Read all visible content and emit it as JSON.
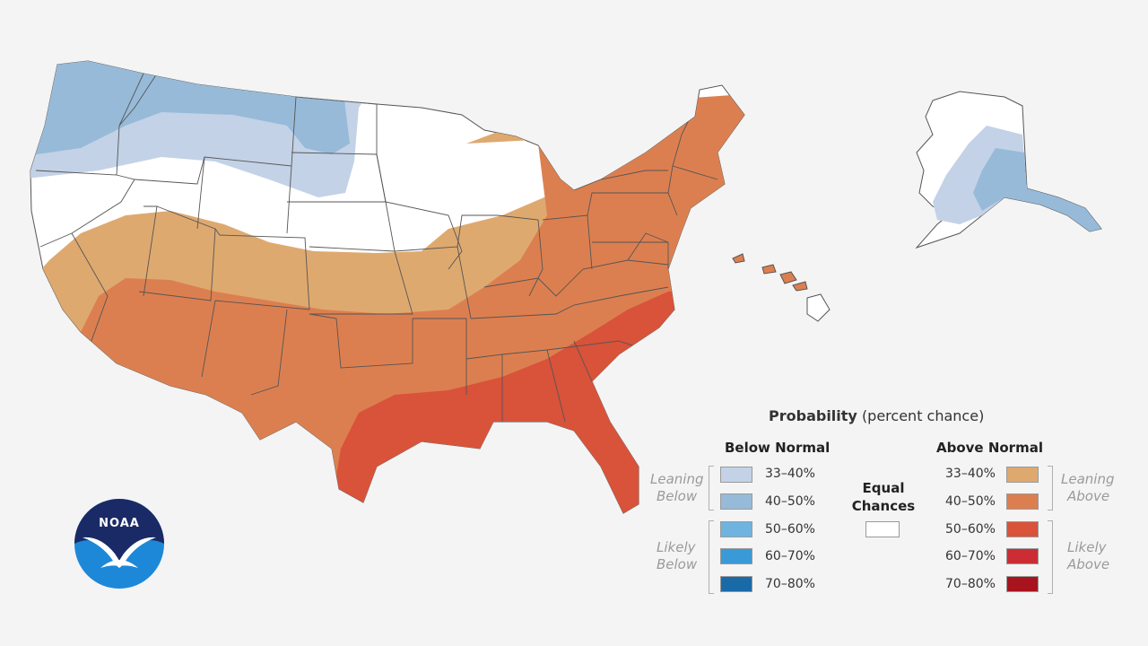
{
  "legend": {
    "title": "Probability",
    "title_sub": "(percent chance)",
    "below_heading": "Below Normal",
    "above_heading": "Above Normal",
    "equal_line1": "Equal",
    "equal_line2": "Chances",
    "leaning_below_1": "Leaning",
    "leaning_below_2": "Below",
    "likely_below_1": "Likely",
    "likely_below_2": "Below",
    "leaning_above_1": "Leaning",
    "leaning_above_2": "Above",
    "likely_above_1": "Likely",
    "likely_above_2": "Above",
    "below": [
      {
        "range": "33–40%",
        "color": "#c3d2e6"
      },
      {
        "range": "40–50%",
        "color": "#97bad9"
      },
      {
        "range": "50–60%",
        "color": "#6fb3e0"
      },
      {
        "range": "60–70%",
        "color": "#3a9ad8"
      },
      {
        "range": "70–80%",
        "color": "#1b6aa8"
      }
    ],
    "above": [
      {
        "range": "33–40%",
        "color": "#dea96f"
      },
      {
        "range": "40–50%",
        "color": "#dc7f50"
      },
      {
        "range": "50–60%",
        "color": "#d9523a"
      },
      {
        "range": "60–70%",
        "color": "#cc2c33"
      },
      {
        "range": "70–80%",
        "color": "#a8141d"
      }
    ],
    "equal_color": "#ffffff"
  },
  "logo": {
    "text": "NOAA"
  }
}
